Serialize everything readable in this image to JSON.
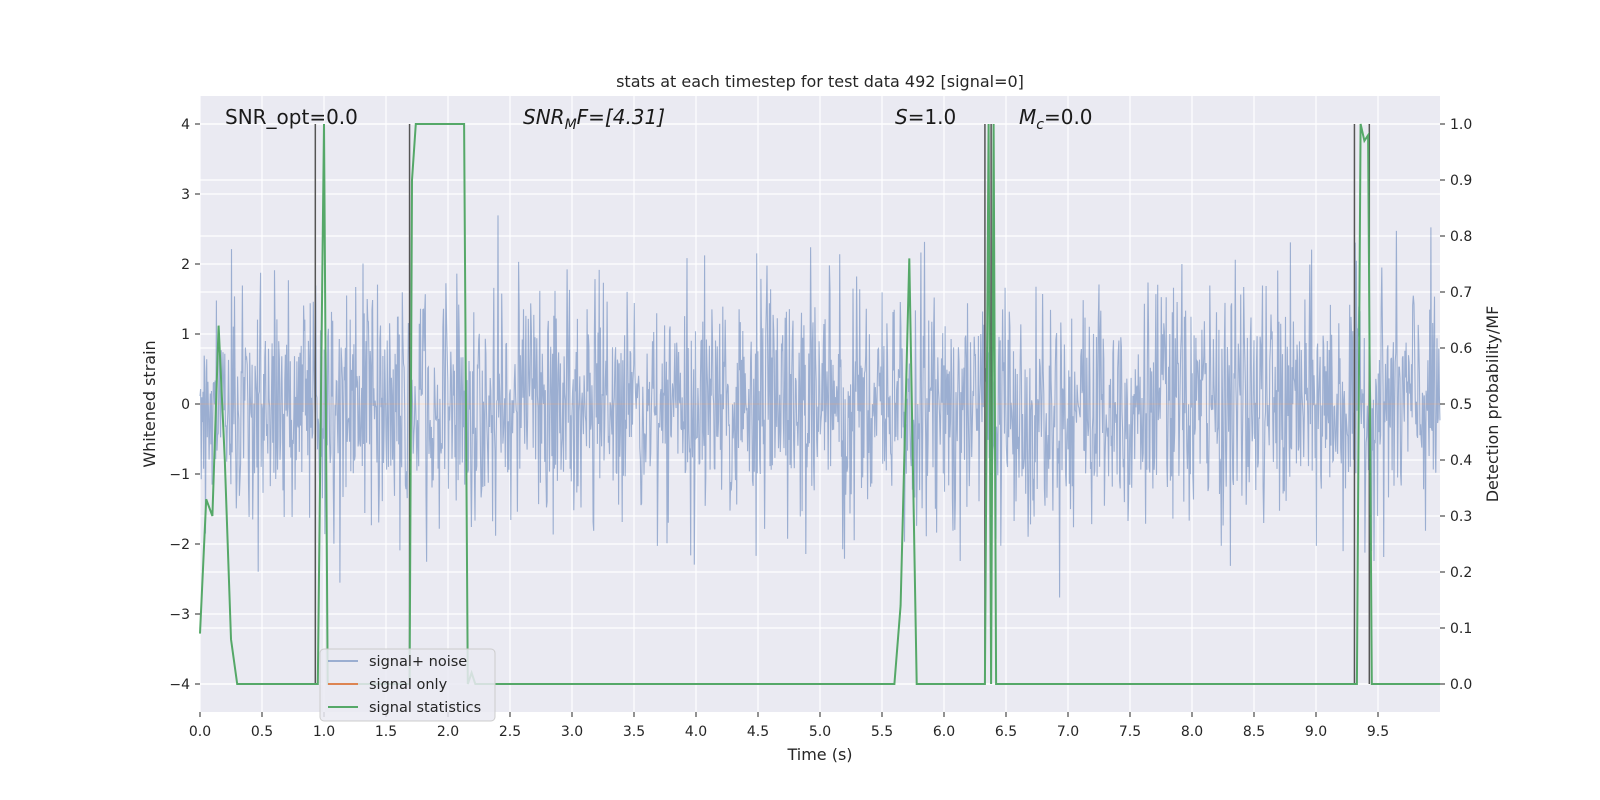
{
  "chart_data": {
    "type": "line",
    "title": "stats at each timestep for test data 492 [signal=0]",
    "xlabel": "Time (s)",
    "ylabel": "Whitened strain",
    "y2label": "Detection probability/MF",
    "xlim": [
      0,
      10
    ],
    "ylim": [
      -4.4,
      4.4
    ],
    "y2lim": [
      -0.05,
      1.05
    ],
    "x_ticks": [
      0.0,
      0.5,
      1.0,
      1.5,
      2.0,
      2.5,
      3.0,
      3.5,
      4.0,
      4.5,
      5.0,
      5.5,
      6.0,
      6.5,
      7.0,
      7.5,
      8.0,
      8.5,
      9.0,
      9.5
    ],
    "x_tick_labels": [
      "0.0",
      "0.5",
      "1.0",
      "1.5",
      "2.0",
      "2.5",
      "3.0",
      "3.5",
      "4.0",
      "4.5",
      "5.0",
      "5.5",
      "6.0",
      "6.5",
      "7.0",
      "7.5",
      "8.0",
      "8.5",
      "9.0",
      "9.5"
    ],
    "y_ticks": [
      -4,
      -3,
      -2,
      -1,
      0,
      1,
      2,
      3,
      4
    ],
    "y_tick_labels": [
      "−4",
      "−3",
      "−2",
      "−1",
      "0",
      "1",
      "2",
      "3",
      "4"
    ],
    "y2_ticks": [
      0.0,
      0.1,
      0.2,
      0.3,
      0.4,
      0.5,
      0.6,
      0.7,
      0.8,
      0.9,
      1.0
    ],
    "y2_tick_labels": [
      "0.0",
      "0.1",
      "0.2",
      "0.3",
      "0.4",
      "0.5",
      "0.6",
      "0.7",
      "0.8",
      "0.9",
      "1.0"
    ],
    "grid": true,
    "legend_position": "lower-left",
    "annotations": {
      "snr_opt": "SNR_opt=0.0",
      "snr_mf_base": "SNR",
      "snr_mf_sub": "M",
      "snr_mf_rest": "F=[4.31]",
      "s_italic": "S",
      "s_rest": "=1.0",
      "mc_base": "M",
      "mc_sub": "c",
      "mc_rest": "=0.0"
    },
    "series": [
      {
        "name": "signal+ noise",
        "color": "#4c72b0",
        "opacity": 0.5,
        "kind": "noise",
        "envelope_sigma": 0.85,
        "max_abs": 4.0
      },
      {
        "name": "signal only",
        "color": "#dd8452",
        "kind": "line",
        "x": [
          0,
          10
        ],
        "y": [
          0,
          0
        ]
      },
      {
        "name": "signal statistics",
        "color": "#55a868",
        "kind": "line",
        "axis": "y2",
        "x": [
          0.0,
          0.05,
          0.1,
          0.15,
          0.2,
          0.25,
          0.3,
          0.35,
          0.9,
          0.95,
          0.98,
          1.0,
          1.03,
          1.06,
          1.65,
          1.69,
          1.71,
          1.74,
          1.78,
          1.82,
          2.1,
          2.13,
          2.16,
          2.19,
          2.22,
          2.25,
          5.6,
          5.65,
          5.72,
          5.78,
          5.83,
          5.88,
          6.3,
          6.33,
          6.36,
          6.38,
          6.4,
          6.42,
          6.44,
          6.48,
          9.28,
          9.33,
          9.36,
          9.39,
          9.42,
          9.45,
          9.5,
          10.0
        ],
        "y": [
          0.09,
          0.33,
          0.3,
          0.64,
          0.4,
          0.08,
          0.0,
          0.0,
          0.0,
          0.0,
          0.6,
          1.0,
          0.0,
          0.0,
          0.0,
          0.0,
          0.9,
          1.0,
          1.0,
          1.0,
          1.0,
          1.0,
          0.0,
          0.02,
          0.0,
          0.0,
          0.0,
          0.14,
          0.76,
          0.0,
          0.0,
          0.0,
          0.0,
          0.0,
          1.0,
          0.0,
          1.0,
          0.0,
          0.0,
          0.0,
          0.0,
          0.0,
          1.0,
          0.97,
          0.98,
          0.0,
          0.0,
          0.0
        ]
      }
    ],
    "vertical_markers": {
      "color": "#555555",
      "x": [
        0.93,
        1.69,
        6.33,
        6.38,
        9.31,
        9.43
      ]
    }
  }
}
